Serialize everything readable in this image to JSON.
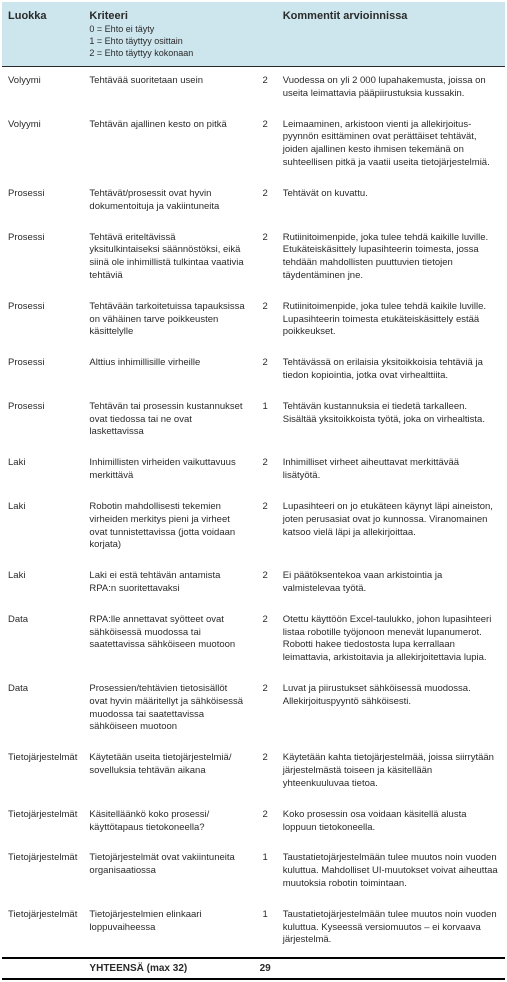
{
  "header": {
    "category": "Luokka",
    "criteria": "Kriteeri",
    "sub0": "0 = Ehto ei täyty",
    "sub1": "1 = Ehto täyttyy osittain",
    "sub2": "2 = Ehto täyttyy kokonaan",
    "comments": "Kommentit arvioinnissa"
  },
  "rows": [
    {
      "cat": "Volyymi",
      "crit": "Tehtävää suoritetaan usein",
      "score": "2",
      "comment": "Vuodessa on yli 2 000 lupahakemusta, joissa on useita leimattavia pääpiirustuksia kussakin."
    },
    {
      "cat": "Volyymi",
      "crit": "Tehtävän ajallinen kesto on pitkä",
      "score": "2",
      "comment": "Leimaaminen, arkistoon vienti ja allekirjoitus­pyynnön esittäminen ovat perättäiset tehtävät, joiden ajallinen kesto ihmisen tekemänä on suhteellisen pitkä ja vaatii useita tietojärjestelmiä."
    },
    {
      "cat": "Prosessi",
      "crit": "Tehtävät/prosessit ovat hyvin dokumentoituja ja vakiintuneita",
      "score": "2",
      "comment": "Tehtävät on kuvattu."
    },
    {
      "cat": "Prosessi",
      "crit": "Tehtävä eriteltävissä yksitulkintaiseksi säännöstöksi, eikä siinä ole inhimillistä tulkintaa vaativia tehtäviä",
      "score": "2",
      "comment": "Rutiinitoimenpide, joka tulee tehdä kaikille luville. Etukäteiskäsittely lupasihteerin toimesta, jossa tehdään mahdollisten puuttuvien tietojen täydentäminen jne."
    },
    {
      "cat": "Prosessi",
      "crit": "Tehtävään tarkoitetuissa tapauksissa on vähäinen tarve poikkeusten käsittelylle",
      "score": "2",
      "comment": "Rutiinitoimenpide, joka tulee tehdä kaikile luville. Lupasihteerin toimesta etukäteiskäsittely estää poikkeukset."
    },
    {
      "cat": "Prosessi",
      "crit": "Alttius inhimillisille virheille",
      "score": "2",
      "comment": "Tehtävässä on erilaisia yksitoikkoisia tehtäviä ja tiedon kopiointia, jotka ovat virhealttiita."
    },
    {
      "cat": "Prosessi",
      "crit": "Tehtävän tai prosessin kustannukset ovat tiedossa tai ne ovat laskettavissa",
      "score": "1",
      "comment": "Tehtävän kustannuksia ei tiedetä tarkalleen. Sisältää yksitoikkoista työtä, joka on virhealtista."
    },
    {
      "cat": "Laki",
      "crit": "Inhimillisten virheiden vaikuttavuus merkittävä",
      "score": "2",
      "comment": "Inhimilliset virheet aiheuttavat merkittävää lisätyötä."
    },
    {
      "cat": "Laki",
      "crit": "Robotin mahdollisesti tekemien virheiden merkitys pieni ja virheet ovat tunnistettavissa (jotta voidaan korjata)",
      "score": "2",
      "comment": "Lupasihteeri on jo etukäteen käynyt läpi aineiston, joten perusasiat ovat jo kunnossa. Viranomainen katsoo vielä läpi ja allekirjoittaa."
    },
    {
      "cat": "Laki",
      "crit": "Laki ei estä tehtävän antamista RPA:n suoritettavaksi",
      "score": "2",
      "comment": "Ei päätöksentekoa vaan arkistointia ja valmistelevaa työtä."
    },
    {
      "cat": "Data",
      "crit": "RPA:lle annettavat syötteet ovat sähköisessä muodossa tai saatettavissa sähköiseen muotoon",
      "score": "2",
      "comment": "Otettu käyttöön Excel-taulukko, johon lupasihteeri listaa robotille työjonoon menevät lupanumerot. Robotti hakee tiedostosta lupa kerrallaan leimattavia, arkistoitavia ja allekirjoitettavia lupia."
    },
    {
      "cat": "Data",
      "crit": "Prosessien/tehtävien tietosisällöt ovat hyvin määritellyt ja sähköisessä muodossa tai saatettavissa sähköiseen muotoon",
      "score": "2",
      "comment": "Luvat ja piirustukset sähköisessä muodossa. Allekirjoituspyyntö sähköisesti."
    },
    {
      "cat": "Tietojärjestelmät",
      "crit": "Käytetään useita tietojärjestelmiä/ sovelluksia tehtävän aikana",
      "score": "2",
      "comment": "Käytetään kahta tietojärjestelmää, joissa siirrytään järjestelmästä toiseen ja käsitellään yhteenkuuluvaa tietoa."
    },
    {
      "cat": "Tietojärjestelmät",
      "crit": "Käsitelläänkö koko prosessi/ käyttötapaus tietokoneella?",
      "score": "2",
      "comment": "Koko prosessin osa voidaan käsitellä alusta loppuun tietokoneella."
    },
    {
      "cat": "Tietojärjestelmät",
      "crit": "Tietojärjestelmät ovat vakiintuneita organisaatiossa",
      "score": "1",
      "comment": "Taustatietojärjestelmään tulee muutos noin vuoden kuluttua. Mahdolliset UI-muutokset voivat aiheuttaa muutoksia robotin toimintaan."
    },
    {
      "cat": "Tietojärjestelmät",
      "crit": "Tietojärjestelmien elinkaari loppuvaiheessa",
      "score": "1",
      "comment": "Taustatietojärjestelmään tulee muutos noin vuoden kuluttua. Kyseessä versiomuutos – ei korvaava järjestelmä."
    }
  ],
  "total": {
    "label": "YHTEENSÄ (max 32)",
    "value": "29"
  }
}
